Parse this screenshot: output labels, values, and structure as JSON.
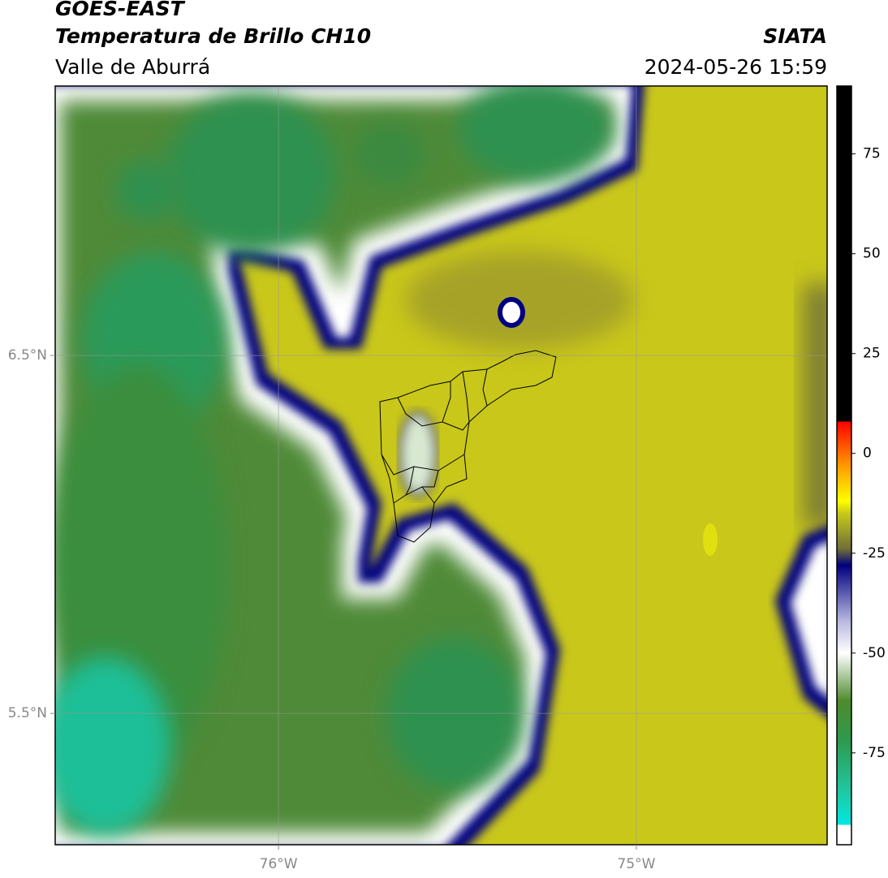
{
  "header": {
    "title": "GOES-EAST",
    "subtitle": "Temperatura de Brillo CH10",
    "region": "Valle de Aburrá",
    "source": "SIATA",
    "datetime": "2024-05-26 15:59"
  },
  "map": {
    "xlim": [
      -76.624,
      -74.467
    ],
    "ylim": [
      5.133,
      7.253
    ],
    "xticks": [
      {
        "value": -76,
        "label": "76°W"
      },
      {
        "value": -75,
        "label": "75°W"
      }
    ],
    "yticks": [
      {
        "value": 6.5,
        "label": "6.5°N"
      },
      {
        "value": 5.5,
        "label": "5.5°N"
      }
    ],
    "grid": true
  },
  "colorbar": {
    "ylim": [
      -98,
      92
    ],
    "yticks": [
      75,
      50,
      25,
      0,
      -25,
      -50,
      -75
    ],
    "stops": [
      {
        "value": -98,
        "color": "#ffffff"
      },
      {
        "value": -93,
        "color": "#ffffff"
      },
      {
        "value": -93,
        "color": "#00e8e0"
      },
      {
        "value": -85,
        "color": "#1fc9a5"
      },
      {
        "value": -72,
        "color": "#2e9a4e"
      },
      {
        "value": -62,
        "color": "#4f8a2e"
      },
      {
        "value": -50,
        "color": "#ffffff"
      },
      {
        "value": -42,
        "color": "#b8b8e0"
      },
      {
        "value": -28,
        "color": "#00007f"
      },
      {
        "value": -24,
        "color": "#6e6e3a"
      },
      {
        "value": -15,
        "color": "#c8c81a"
      },
      {
        "value": -12,
        "color": "#ffff00"
      },
      {
        "value": -3,
        "color": "#ff9900"
      },
      {
        "value": 8,
        "color": "#ff0000"
      },
      {
        "value": 8,
        "color": "#000000"
      },
      {
        "value": 92,
        "color": "#000000"
      }
    ]
  }
}
